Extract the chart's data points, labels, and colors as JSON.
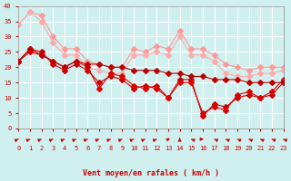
{
  "xlabel": "Vent moyen/en rafales ( km/h )",
  "ylabel": "",
  "background_color": "#d0f0f0",
  "grid_color": "#ffffff",
  "xlim": [
    0,
    23
  ],
  "ylim": [
    0,
    40
  ],
  "yticks": [
    0,
    5,
    10,
    15,
    20,
    25,
    30,
    35,
    40
  ],
  "xticks": [
    0,
    1,
    2,
    3,
    4,
    5,
    6,
    7,
    8,
    9,
    10,
    11,
    12,
    13,
    14,
    15,
    16,
    17,
    18,
    19,
    20,
    21,
    22,
    23
  ],
  "lines_light": [
    {
      "x": [
        0,
        1,
        2,
        3,
        4,
        5,
        6,
        7,
        8,
        9,
        10,
        11,
        12,
        13,
        14,
        15,
        16,
        17,
        18,
        19,
        20,
        21,
        22,
        23
      ],
      "y": [
        34,
        38,
        37,
        30,
        26,
        26,
        22,
        21,
        20,
        20,
        26,
        25,
        27,
        26,
        32,
        26,
        26,
        24,
        21,
        20,
        19,
        20,
        20,
        20
      ],
      "color": "#ff9999",
      "marker": "D",
      "ms": 3
    },
    {
      "x": [
        0,
        1,
        2,
        3,
        4,
        5,
        6,
        7,
        8,
        9,
        10,
        11,
        12,
        13,
        14,
        15,
        16,
        17,
        18,
        19,
        20,
        21,
        22,
        23
      ],
      "y": [
        34,
        38,
        35,
        28,
        24,
        24,
        20,
        19,
        18,
        18,
        24,
        24,
        25,
        24,
        30,
        24,
        24,
        22,
        18,
        17,
        17,
        18,
        18,
        19
      ],
      "color": "#ffaaaa",
      "marker": "D",
      "ms": 3
    }
  ],
  "lines_dark": [
    {
      "x": [
        0,
        1,
        2,
        3,
        4,
        5,
        6,
        7,
        8,
        9,
        10,
        11,
        12,
        13,
        14,
        15,
        16,
        17,
        18,
        19,
        20,
        21,
        22,
        23
      ],
      "y": [
        22,
        26,
        25,
        21,
        19,
        21,
        19,
        15,
        17,
        16,
        13,
        14,
        13,
        10,
        16,
        16,
        4,
        8,
        7,
        10,
        11,
        10,
        11,
        15
      ],
      "color": "#cc0000",
      "marker": "D",
      "ms": 3
    },
    {
      "x": [
        0,
        1,
        2,
        3,
        4,
        5,
        6,
        7,
        8,
        9,
        10,
        11,
        12,
        13,
        14,
        15,
        16,
        17,
        18,
        19,
        20,
        21,
        22,
        23
      ],
      "y": [
        22,
        25,
        24,
        22,
        20,
        22,
        20,
        13,
        18,
        17,
        14,
        13,
        14,
        10,
        15,
        15,
        5,
        7,
        6,
        11,
        12,
        10,
        12,
        16
      ],
      "color": "#dd0000",
      "marker": "D",
      "ms": 3
    },
    {
      "x": [
        0,
        1,
        2,
        3,
        4,
        5,
        6,
        7,
        8,
        9,
        10,
        11,
        12,
        13,
        14,
        15,
        16,
        17,
        18,
        19,
        20,
        21,
        22,
        23
      ],
      "y": [
        22,
        26,
        24,
        22,
        20,
        22,
        21,
        21,
        20,
        20,
        19,
        19,
        19,
        18,
        18,
        17,
        17,
        16,
        16,
        16,
        15,
        15,
        15,
        15
      ],
      "color": "#bb0000",
      "marker": "D",
      "ms": 3
    }
  ],
  "wind_arrows": {
    "x": [
      0,
      1,
      2,
      3,
      4,
      5,
      6,
      7,
      8,
      9,
      10,
      11,
      12,
      13,
      14,
      15,
      16,
      17,
      18,
      19,
      20,
      21,
      22,
      23
    ],
    "angles_deg": [
      45,
      45,
      45,
      45,
      45,
      45,
      45,
      45,
      45,
      45,
      45,
      45,
      45,
      30,
      0,
      315,
      90,
      315,
      315,
      315,
      315,
      315,
      315,
      315
    ]
  }
}
